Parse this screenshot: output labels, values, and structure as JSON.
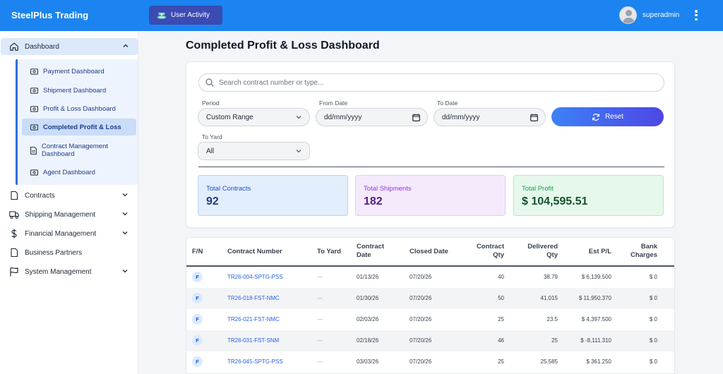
{
  "header": {
    "brand": "SteelPlus Trading",
    "activity_label": "User Activity",
    "username": "superadmin"
  },
  "sidebar": {
    "dashboard_label": "Dashboard",
    "sub_items": [
      {
        "label": "Payment Dashboard",
        "icon": "money-icon"
      },
      {
        "label": "Shipment Dashboard",
        "icon": "money-icon"
      },
      {
        "label": "Profit & Loss Dashboard",
        "icon": "money-icon"
      },
      {
        "label": "Completed Profit & Loss",
        "icon": "money-icon",
        "active": true
      },
      {
        "label": "Contract Management Dashboard",
        "icon": "document-icon"
      },
      {
        "label": "Agent Dashboard",
        "icon": "money-icon"
      }
    ],
    "items": [
      {
        "label": "Contracts",
        "icon": "file-icon",
        "has_children": true
      },
      {
        "label": "Shipping Management",
        "icon": "truck-icon",
        "has_children": true
      },
      {
        "label": "Financial Management",
        "icon": "dollar-icon",
        "has_children": true
      },
      {
        "label": "Business Partners",
        "icon": "file-icon",
        "has_children": false
      },
      {
        "label": "System Management",
        "icon": "flag-icon",
        "has_children": true
      }
    ]
  },
  "main": {
    "title": "Completed Profit & Loss Dashboard",
    "search_placeholder": "Search contract number or type...",
    "period": {
      "label": "Period",
      "value": "Custom Range"
    },
    "from_date": {
      "label": "From Date",
      "value": "dd/mm/yyyy"
    },
    "to_date": {
      "label": "To Date",
      "value": "dd/mm/yyyy"
    },
    "reset_label": "Reset",
    "to_yard": {
      "label": "To Yard",
      "value": "All"
    },
    "stats": {
      "contracts": {
        "label": "Total Contracts",
        "value": "92"
      },
      "shipments": {
        "label": "Total Shipments",
        "value": "182"
      },
      "profit": {
        "label": "Total Profit",
        "value": "$ 104,595.51"
      }
    }
  },
  "table": {
    "headers": {
      "fn": "F/N",
      "contract_number": "Contract Number",
      "to_yard": "To Yard",
      "contract_date": "Contract Date",
      "closed_date": "Closed Date",
      "contract_qty": "Contract Qty",
      "delivered_qty": "Delivered Qty",
      "est_pl": "Est P/L",
      "bank_charges": "Bank Charges"
    },
    "rows": [
      {
        "fn": "F",
        "contract": "TR26-004-SPTG-PSS",
        "yard": "—",
        "contract_date": "01/13/26",
        "closed_date": "07/20/26",
        "contract_qty": "40",
        "delivered_qty": "38.79",
        "est_pl": "$ 6,139.500",
        "bank": "$ 0"
      },
      {
        "fn": "F",
        "contract": "TR26-018-FST-NMC",
        "yard": "—",
        "contract_date": "01/30/26",
        "closed_date": "07/20/26",
        "contract_qty": "50",
        "delivered_qty": "41.015",
        "est_pl": "$ 11,950.370",
        "bank": "$ 0"
      },
      {
        "fn": "F",
        "contract": "TR26-021-FST-NMC",
        "yard": "—",
        "contract_date": "02/03/26",
        "closed_date": "07/20/26",
        "contract_qty": "25",
        "delivered_qty": "23.5",
        "est_pl": "$ 4,397.500",
        "bank": "$ 0"
      },
      {
        "fn": "F",
        "contract": "TR26-031-FST-SNM",
        "yard": "—",
        "contract_date": "02/18/26",
        "closed_date": "07/20/26",
        "contract_qty": "46",
        "delivered_qty": "25",
        "est_pl": "$ -8,111.310",
        "bank": "$ 0"
      },
      {
        "fn": "F",
        "contract": "TR26-045-SPTG-PSS",
        "yard": "—",
        "contract_date": "03/03/26",
        "closed_date": "07/20/26",
        "contract_qty": "25",
        "delivered_qty": "25.585",
        "est_pl": "$ 361.250",
        "bank": "$ 0"
      }
    ]
  },
  "colors": {
    "header": "#1b84f0",
    "accent": "#3a4bb3",
    "link": "#2563eb"
  }
}
